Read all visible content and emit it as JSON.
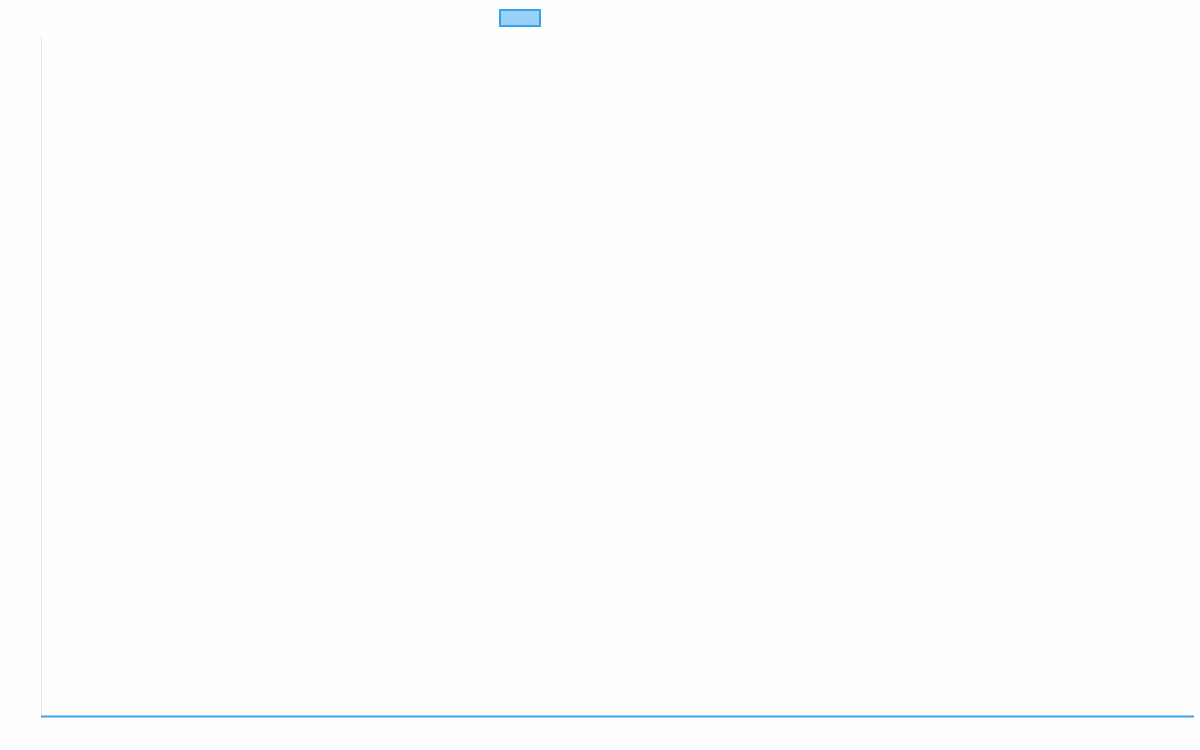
{
  "chart_data": {
    "type": "line",
    "title": "",
    "xlabel": "",
    "ylabel": "",
    "categories": [],
    "series": [
      {
        "values": [],
        "color": "#36a2eb",
        "fill": "#9ad0f5"
      }
    ],
    "legend": "top",
    "grid": false,
    "axis_color": "#e5e5e5"
  }
}
